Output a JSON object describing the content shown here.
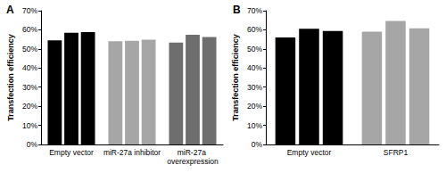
{
  "chart_data": [
    {
      "type": "bar",
      "title": "A",
      "y_label": "Transfection efficiency",
      "categories": [
        "Empty vector",
        "miR-27a inhibitor",
        "miR-27a overexpression"
      ],
      "series": [
        {
          "values": [
            54.5,
            54.0,
            53.3
          ],
          "colors": [
            "#000000",
            "#a6a6a6",
            "#6e6e6e"
          ]
        },
        {
          "values": [
            58.4,
            54.2,
            57.4
          ],
          "colors": [
            "#000000",
            "#a6a6a6",
            "#6e6e6e"
          ]
        },
        {
          "values": [
            58.8,
            54.8,
            56.2
          ],
          "colors": [
            "#000000",
            "#a6a6a6",
            "#6e6e6e"
          ]
        }
      ],
      "ylim": [
        0,
        70
      ],
      "yticks": [
        {
          "value": 0,
          "label": "0%"
        },
        {
          "value": 10,
          "label": "10%"
        },
        {
          "value": 20,
          "label": "20%"
        },
        {
          "value": 30,
          "label": "30%"
        },
        {
          "value": 40,
          "label": "40%"
        },
        {
          "value": 50,
          "label": "50%"
        },
        {
          "value": 60,
          "label": "60%"
        },
        {
          "value": 70,
          "label": "70%"
        }
      ],
      "grid": false
    },
    {
      "type": "bar",
      "title": "B",
      "y_label": "Transfection efficiency",
      "categories": [
        "Empty vector",
        "SFRP1"
      ],
      "series": [
        {
          "values": [
            56.0,
            59.0
          ],
          "colors": [
            "#000000",
            "#a6a6a6"
          ]
        },
        {
          "values": [
            60.6,
            64.6
          ],
          "colors": [
            "#000000",
            "#a6a6a6"
          ]
        },
        {
          "values": [
            59.4,
            60.8
          ],
          "colors": [
            "#000000",
            "#a6a6a6"
          ]
        }
      ],
      "ylim": [
        0,
        70
      ],
      "yticks": [
        {
          "value": 0,
          "label": "0%"
        },
        {
          "value": 10,
          "label": "10%"
        },
        {
          "value": 20,
          "label": "20%"
        },
        {
          "value": 30,
          "label": "30%"
        },
        {
          "value": 40,
          "label": "40%"
        },
        {
          "value": 50,
          "label": "50%"
        },
        {
          "value": 60,
          "label": "60%"
        },
        {
          "value": 70,
          "label": "70%"
        }
      ],
      "grid": false
    }
  ]
}
